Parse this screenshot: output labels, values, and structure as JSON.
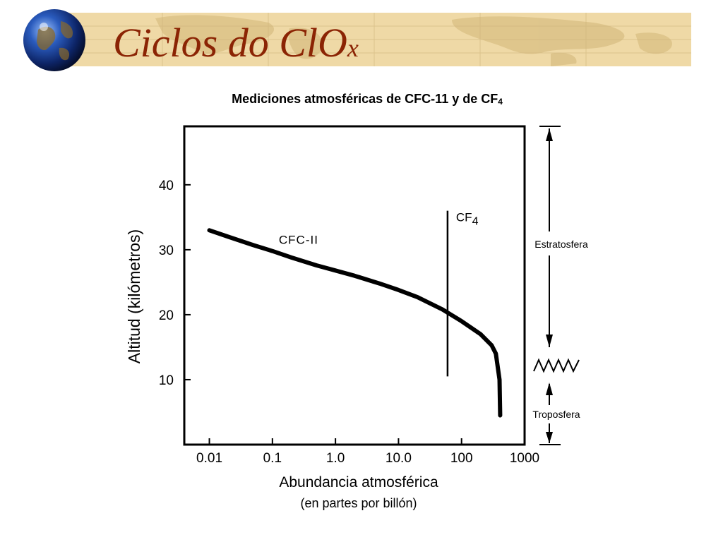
{
  "slide": {
    "title_main": "Ciclos do ClO",
    "title_sub": "x"
  },
  "chart_data": {
    "type": "line",
    "title_main": "Mediciones atmosféricas de CFC-11 y de CF",
    "title_sub": "4",
    "xlabel": "Abundancia atmosférica",
    "xlabel_sub": "(en partes por billón)",
    "ylabel": "Altitud (kilómetros)",
    "x_scale": "log",
    "xlim": [
      0.004,
      1000
    ],
    "ylim": [
      0,
      49
    ],
    "xticks": [
      {
        "value": 0.01,
        "label": "0.01"
      },
      {
        "value": 0.1,
        "label": "0.1"
      },
      {
        "value": 1,
        "label": "1.0"
      },
      {
        "value": 10,
        "label": "10.0"
      },
      {
        "value": 100,
        "label": "100"
      },
      {
        "value": 1000,
        "label": "1000"
      }
    ],
    "yticks": [
      {
        "value": 10,
        "label": "10"
      },
      {
        "value": 20,
        "label": "20"
      },
      {
        "value": 30,
        "label": "30"
      },
      {
        "value": 40,
        "label": "40"
      }
    ],
    "grid": false,
    "series": [
      {
        "name": "CFC-11",
        "label": "CFC-II",
        "x": [
          0.01,
          0.02,
          0.05,
          0.1,
          0.2,
          0.5,
          1,
          2,
          5,
          10,
          20,
          50,
          100,
          200,
          300,
          350,
          400,
          410
        ],
        "y": [
          33,
          32,
          30.7,
          29.8,
          28.8,
          27.6,
          26.8,
          26,
          24.8,
          23.8,
          22.7,
          20.8,
          19,
          17,
          15.3,
          14,
          10,
          4.5
        ]
      },
      {
        "name": "CF4",
        "label_main": "CF",
        "label_sub": "4",
        "x": [
          60,
          60
        ],
        "y": [
          10.5,
          36
        ]
      }
    ],
    "annotations": {
      "stratosphere": "Estratosfera",
      "troposphere": "Troposfera"
    }
  }
}
